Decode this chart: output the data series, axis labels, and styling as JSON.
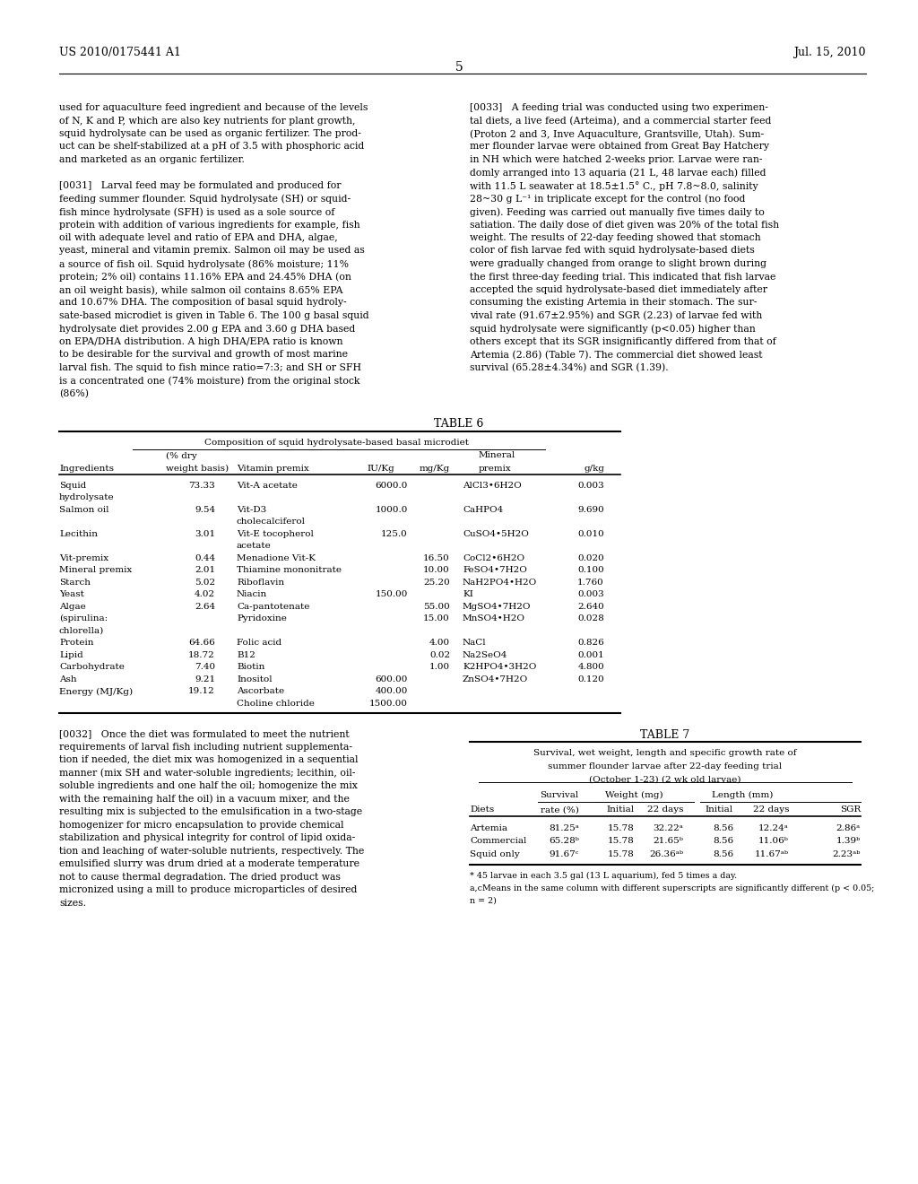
{
  "page_header_left": "US 2010/0175441 A1",
  "page_header_right": "Jul. 15, 2010",
  "page_number": "5",
  "bg_color": "#ffffff",
  "left_column_text": [
    "used for aquaculture feed ingredient and because of the levels",
    "of N, K and P, which are also key nutrients for plant growth,",
    "squid hydrolysate can be used as organic fertilizer. The prod-",
    "uct can be shelf-stabilized at a pH of 3.5 with phosphoric acid",
    "and marketed as an organic fertilizer.",
    "",
    "[0031]   Larval feed may be formulated and produced for",
    "feeding summer flounder. Squid hydrolysate (SH) or squid-",
    "fish mince hydrolysate (SFH) is used as a sole source of",
    "protein with addition of various ingredients for example, fish",
    "oil with adequate level and ratio of EPA and DHA, algae,",
    "yeast, mineral and vitamin premix. Salmon oil may be used as",
    "a source of fish oil. Squid hydrolysate (86% moisture; 11%",
    "protein; 2% oil) contains 11.16% EPA and 24.45% DHA (on",
    "an oil weight basis), while salmon oil contains 8.65% EPA",
    "and 10.67% DHA. The composition of basal squid hydroly-",
    "sate-based microdiet is given in Table 6. The 100 g basal squid",
    "hydrolysate diet provides 2.00 g EPA and 3.60 g DHA based",
    "on EPA/DHA distribution. A high DHA/EPA ratio is known",
    "to be desirable for the survival and growth of most marine",
    "larval fish. The squid to fish mince ratio=7:3; and SH or SFH",
    "is a concentrated one (74% moisture) from the original stock",
    "(86%)"
  ],
  "right_column_text": [
    "[0033]   A feeding trial was conducted using two experimen-",
    "tal diets, a live feed (Arteima), and a commercial starter feed",
    "(Proton 2 and 3, Inve Aquaculture, Grantsville, Utah). Sum-",
    "mer flounder larvae were obtained from Great Bay Hatchery",
    "in NH which were hatched 2-weeks prior. Larvae were ran-",
    "domly arranged into 13 aquaria (21 L, 48 larvae each) filled",
    "with 11.5 L seawater at 18.5±1.5° C., pH 7.8~8.0, salinity",
    "28~30 g L⁻¹ in triplicate except for the control (no food",
    "given). Feeding was carried out manually five times daily to",
    "satiation. The daily dose of diet given was 20% of the total fish",
    "weight. The results of 22-day feeding showed that stomach",
    "color of fish larvae fed with squid hydrolysate-based diets",
    "were gradually changed from orange to slight brown during",
    "the first three-day feeding trial. This indicated that fish larvae",
    "accepted the squid hydrolysate-based diet immediately after",
    "consuming the existing Artemia in their stomach. The sur-",
    "vival rate (91.67±2.95%) and SGR (2.23) of larvae fed with",
    "squid hydrolysate were significantly (p<0.05) higher than",
    "others except that its SGR insignificantly differed from that of",
    "Artemia (2.86) (Table 7). The commercial diet showed least",
    "survival (65.28±4.34%) and SGR (1.39)."
  ],
  "table6_title": "TABLE 6",
  "table6_subtitle": "Composition of squid hydrolysate-based basal microdiet",
  "table6_rows": [
    [
      "Squid",
      "73.33",
      "Vit-A acetate",
      "6000.0",
      "",
      "AlCl3•6H2O",
      "0.003"
    ],
    [
      "hydrolysate",
      "",
      "",
      "",
      "",
      "",
      ""
    ],
    [
      "Salmon oil",
      "9.54",
      "Vit-D3",
      "1000.0",
      "",
      "CaHPO4",
      "9.690"
    ],
    [
      "",
      "",
      "cholecalciferol",
      "",
      "",
      "",
      ""
    ],
    [
      "Lecithin",
      "3.01",
      "Vit-E tocopherol",
      "125.0",
      "",
      "CuSO4•5H2O",
      "0.010"
    ],
    [
      "",
      "",
      "acetate",
      "",
      "",
      "",
      ""
    ],
    [
      "Vit-premix",
      "0.44",
      "Menadione Vit-K",
      "",
      "16.50",
      "CoCl2•6H2O",
      "0.020"
    ],
    [
      "Mineral premix",
      "2.01",
      "Thiamine mononitrate",
      "",
      "10.00",
      "FeSO4•7H2O",
      "0.100"
    ],
    [
      "Starch",
      "5.02",
      "Riboflavin",
      "",
      "25.20",
      "NaH2PO4•H2O",
      "1.760"
    ],
    [
      "Yeast",
      "4.02",
      "Niacin",
      "150.00",
      "",
      "KI",
      "0.003"
    ],
    [
      "Algae",
      "2.64",
      "Ca-pantotenate",
      "",
      "55.00",
      "MgSO4•7H2O",
      "2.640"
    ],
    [
      "(spirulina:",
      "",
      "Pyridoxine",
      "",
      "15.00",
      "MnSO4•H2O",
      "0.028"
    ],
    [
      "chlorella)",
      "",
      "",
      "",
      "",
      "",
      ""
    ],
    [
      "Protein",
      "64.66",
      "Folic acid",
      "",
      "4.00",
      "NaCl",
      "0.826"
    ],
    [
      "Lipid",
      "18.72",
      "B12",
      "",
      "0.02",
      "Na2SeO4",
      "0.001"
    ],
    [
      "Carbohydrate",
      "7.40",
      "Biotin",
      "",
      "1.00",
      "K2HPO4•3H2O",
      "4.800"
    ],
    [
      "Ash",
      "9.21",
      "Inositol",
      "600.00",
      "",
      "ZnSO4•7H2O",
      "0.120"
    ],
    [
      "Energy (MJ/Kg)",
      "19.12",
      "Ascorbate",
      "400.00",
      "",
      "",
      ""
    ],
    [
      "",
      "",
      "Choline chloride",
      "1500.00",
      "",
      "",
      ""
    ]
  ],
  "left_bottom_text": [
    "[0032]   Once the diet was formulated to meet the nutrient",
    "requirements of larval fish including nutrient supplementa-",
    "tion if needed, the diet mix was homogenized in a sequential",
    "manner (mix SH and water-soluble ingredients; lecithin, oil-",
    "soluble ingredients and one half the oil; homogenize the mix",
    "with the remaining half the oil) in a vacuum mixer, and the",
    "resulting mix is subjected to the emulsification in a two-stage",
    "homogenizer for micro encapsulation to provide chemical",
    "stabilization and physical integrity for control of lipid oxida-",
    "tion and leaching of water-soluble nutrients, respectively. The",
    "emulsified slurry was drum dried at a moderate temperature",
    "not to cause thermal degradation. The dried product was",
    "micronized using a mill to produce microparticles of desired",
    "sizes."
  ],
  "table7_title": "TABLE 7",
  "table7_subtitle1": "Survival, wet weight, length and specific growth rate of",
  "table7_subtitle2": "summer flounder larvae after 22-day feeding trial",
  "table7_subtitle3": "(October 1-23) (2 wk old larvae)",
  "table7_rows": [
    [
      "Artemia",
      "81.25ᵃ",
      "15.78",
      "32.22ᵃ",
      "8.56",
      "12.24ᵃ",
      "2.86ᵃ"
    ],
    [
      "Commercial",
      "65.28ᵇ",
      "15.78",
      "21.65ᵇ",
      "8.56",
      "11.06ᵇ",
      "1.39ᵇ"
    ],
    [
      "Squid only",
      "91.67ᶜ",
      "15.78",
      "26.36ᵃᵇ",
      "8.56",
      "11.67ᵃᵇ",
      "2.23ᵃᵇ"
    ]
  ],
  "table7_footnote1": "* 45 larvae in each 3.5 gal (13 L aquarium), fed 5 times a day.",
  "table7_footnote2": "a,cMeans in the same column with different superscripts are significantly different (p < 0.05;",
  "table7_footnote3": "n = 2)"
}
